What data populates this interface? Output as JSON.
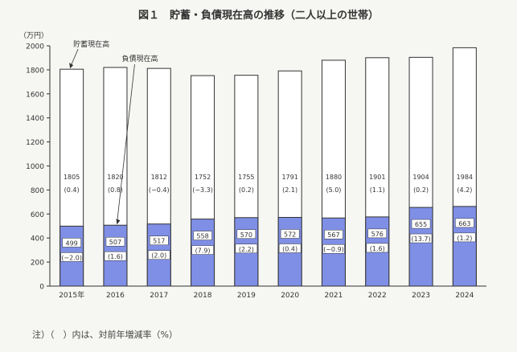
{
  "figure": {
    "title": "図１　貯蓄・負債現在高の推移（二人以上の世帯）",
    "note": "注）（　）内は、対前年増減率（%）"
  },
  "chart_data": {
    "type": "bar",
    "categories": [
      "2015年",
      "2016",
      "2017",
      "2018",
      "2019",
      "2020",
      "2021",
      "2022",
      "2023",
      "2024"
    ],
    "series": [
      {
        "name": "貯蓄現在高",
        "values": [
          1805,
          1820,
          1812,
          1752,
          1755,
          1791,
          1880,
          1901,
          1904,
          1984
        ],
        "changes": [
          "(0.4)",
          "(0.8)",
          "(−0.4)",
          "(−3.3)",
          "(0.2)",
          "(2.1)",
          "(5.0)",
          "(1.1)",
          "(0.2)",
          "(4.2)"
        ],
        "color": "#ffffff"
      },
      {
        "name": "負債現在高",
        "values": [
          499,
          507,
          517,
          558,
          570,
          572,
          567,
          576,
          655,
          663
        ],
        "changes": [
          "(−2.0)",
          "(1.6)",
          "(2.0)",
          "(7.9)",
          "(2.2)",
          "(0.4)",
          "(−0.9)",
          "(1.6)",
          "(13.7)",
          "(1.2)"
        ],
        "color": "#7f8fe6"
      }
    ],
    "ylabel": "（万円）",
    "ylim": [
      0,
      2000
    ],
    "yticks": [
      0,
      200,
      400,
      600,
      800,
      1000,
      1200,
      1400,
      1600,
      1800,
      2000
    ],
    "grid": false,
    "legend": "callout-labels"
  }
}
